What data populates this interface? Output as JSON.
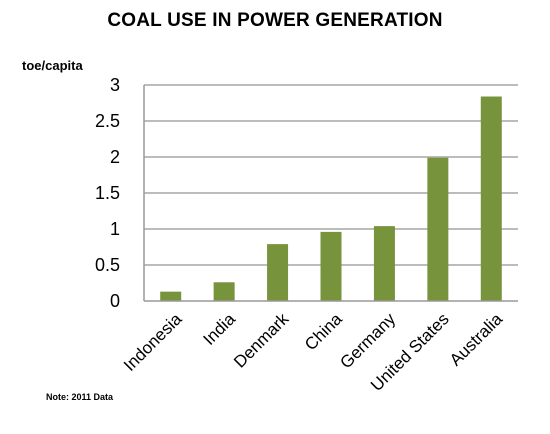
{
  "title": "COAL USE IN POWER GENERATION",
  "unit": "toe/capita",
  "note": "Note: 2011 Data",
  "colors": {
    "bar": "#77933c",
    "grid": "#a6a6a6",
    "axis": "#999999"
  },
  "chart_data": {
    "type": "bar",
    "title": "COAL USE IN POWER GENERATION",
    "ylabel": "toe/capita",
    "xlabel": "",
    "categories": [
      "Indonesia",
      "India",
      "Denmark",
      "China",
      "Germany",
      "United States",
      "Australia"
    ],
    "values": [
      0.13,
      0.26,
      0.79,
      0.96,
      1.04,
      1.99,
      2.84
    ],
    "ylim": [
      0,
      3
    ],
    "yticks": [
      "0",
      "0.5",
      "1",
      "1.5",
      "2",
      "2.5",
      "3"
    ],
    "grid": true,
    "legend": "none"
  }
}
